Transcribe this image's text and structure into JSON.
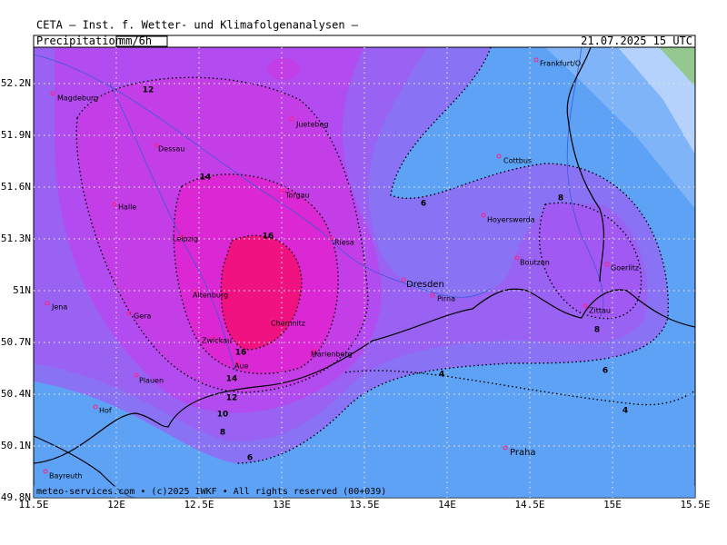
{
  "header": {
    "line": "CETA — Inst. f. Wetter- und Klimafolgenanalysen —",
    "parameter": "Precipitation",
    "unit": "mm/6h",
    "valid": "21.07.2025 15 UTC"
  },
  "map": {
    "lat_ticks": [
      {
        "value": 52.2,
        "label": "52.2N"
      },
      {
        "value": 51.9,
        "label": "51.9N"
      },
      {
        "value": 51.6,
        "label": "51.6N"
      },
      {
        "value": 51.3,
        "label": "51.3N"
      },
      {
        "value": 51,
        "label": "51N"
      },
      {
        "value": 50.7,
        "label": "50.7N"
      },
      {
        "value": 50.4,
        "label": "50.4N"
      },
      {
        "value": 50.1,
        "label": "50.1N"
      },
      {
        "value": 49.8,
        "label": "49.8N"
      }
    ],
    "lon_ticks": [
      {
        "value": 11.5,
        "label": "11.5E"
      },
      {
        "value": 12,
        "label": "12E"
      },
      {
        "value": 12.5,
        "label": "12.5E"
      },
      {
        "value": 13,
        "label": "13E"
      },
      {
        "value": 13.5,
        "label": "13.5E"
      },
      {
        "value": 14,
        "label": "14E"
      },
      {
        "value": 14.5,
        "label": "14.5E"
      },
      {
        "value": 15,
        "label": "15E"
      },
      {
        "value": 15.5,
        "label": "15.5E"
      }
    ],
    "cities": [
      "Magdeburg",
      "Dessau",
      "Juetebog",
      "Torgau",
      "Halle",
      "Leipzig",
      "Riesa",
      "Altenburg",
      "Gera",
      "Jena",
      "Zwickau",
      "Chemnitz",
      "Aue",
      "Marienberg",
      "Plauen",
      "Hof",
      "Bayreuth",
      "Dresden",
      "Pirna",
      "Cottbus",
      "Hoyerswerda",
      "Boutzen",
      "Goerlitz",
      "Zittau",
      "Praha",
      "Frankfurt/O."
    ],
    "contour_labels": [
      12,
      14,
      16,
      16,
      14,
      12,
      10,
      8,
      6,
      6,
      4,
      4,
      6,
      8,
      8
    ]
  },
  "footer": "meteo-services.com • (c)2025 IWKF • All rights reserved (00+039)"
}
